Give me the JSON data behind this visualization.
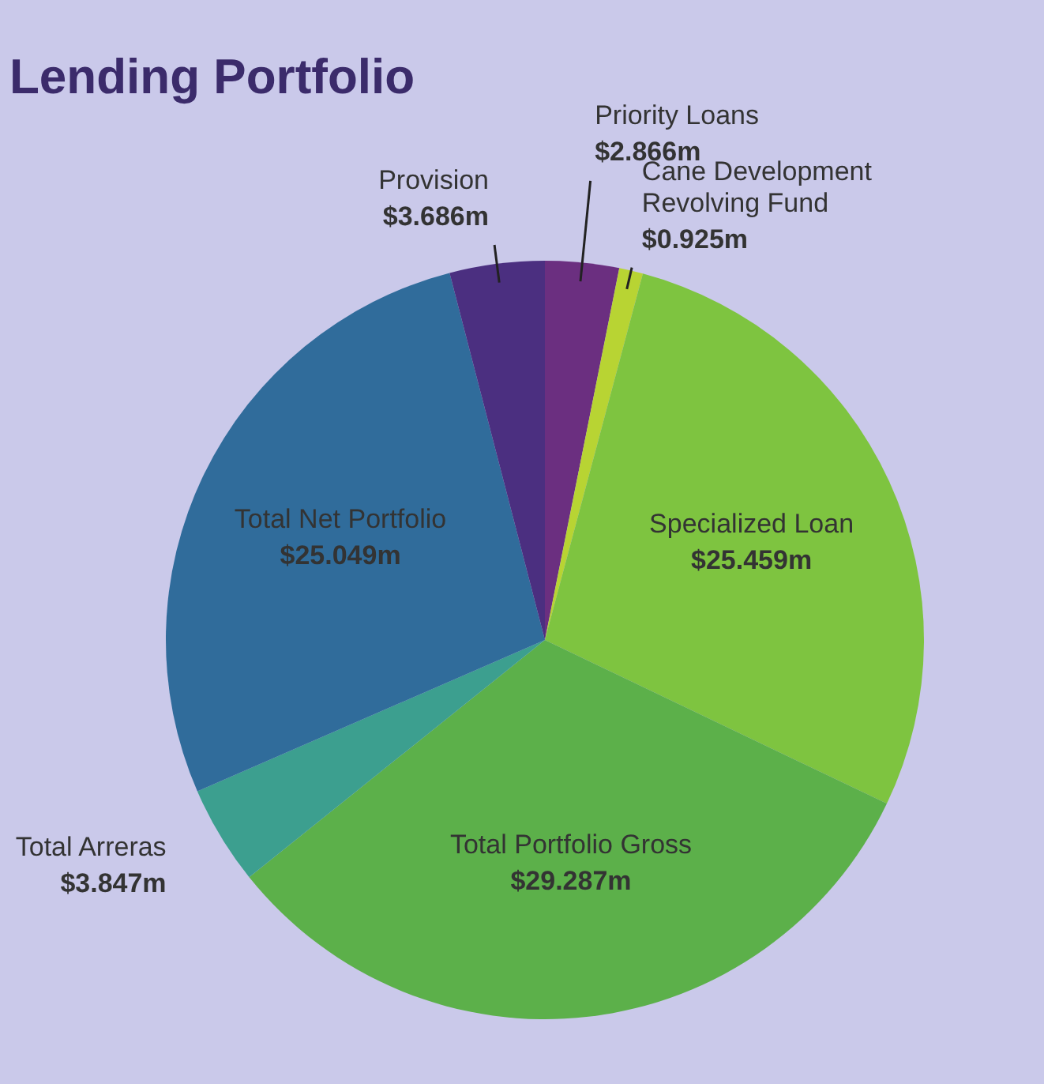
{
  "chart_data": {
    "type": "pie",
    "title": "Lending Portfolio",
    "categories": [
      "Priority Loans",
      "Cane Development Revolving Fund",
      "Specialized Loan",
      "Total Portfolio Gross",
      "Total Arreras",
      "Total Net Portfolio",
      "Provision"
    ],
    "values": [
      2.866,
      0.925,
      25.459,
      29.287,
      3.847,
      25.049,
      3.686
    ],
    "value_labels": [
      "$2.866m",
      "$0.925m",
      "$25.459m",
      "$29.287m",
      "$3.847m",
      "$25.049m",
      "$3.686m"
    ],
    "colors": [
      "#6b2f80",
      "#b8d433",
      "#7ec440",
      "#5cb04a",
      "#3c9f8f",
      "#306c9b",
      "#4b2f80"
    ]
  }
}
